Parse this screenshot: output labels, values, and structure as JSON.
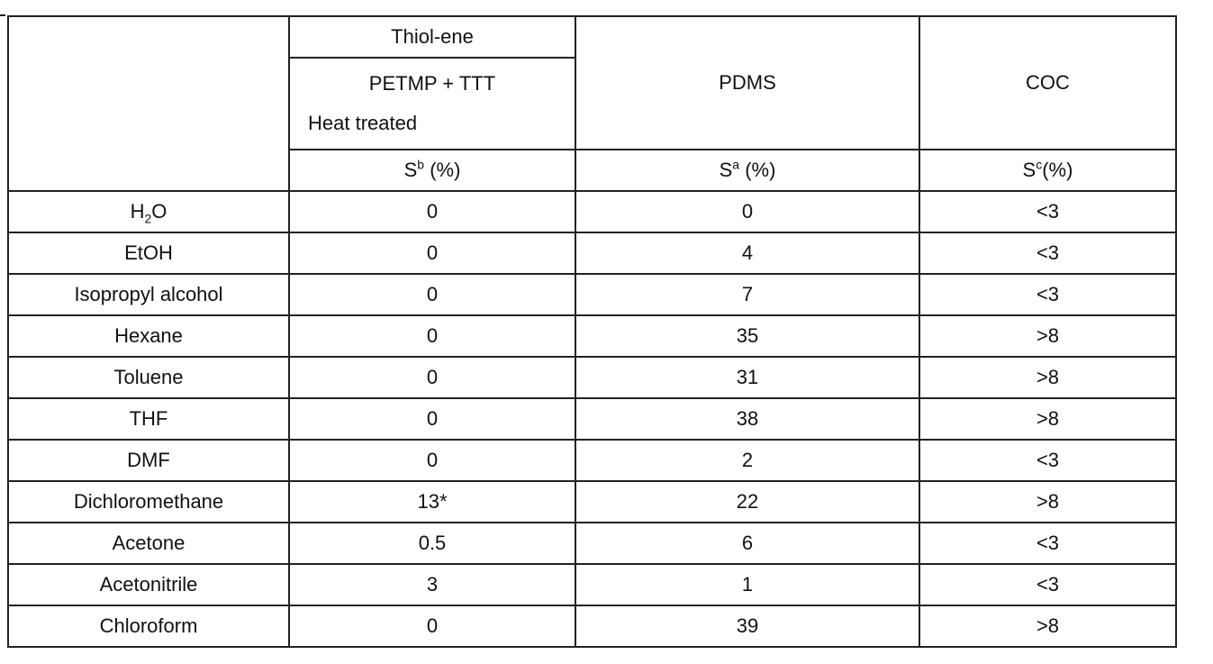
{
  "header": {
    "group_label": "Thiol-ene",
    "thiolene_formulation": "PETMP + TTT",
    "thiolene_treatment": "Heat treated",
    "pdms_label": "PDMS",
    "coc_label": "COC",
    "unit_thiolene": {
      "symbol": "S",
      "sup": "b",
      "unit": "(%)"
    },
    "unit_pdms": {
      "symbol": "S",
      "sup": "a",
      "unit": "(%)"
    },
    "unit_coc": {
      "symbol": "S",
      "sup": "c",
      "unit": "(%)"
    }
  },
  "rows": [
    {
      "solvent_pre": "H",
      "solvent_sub": "2",
      "solvent_post": "O",
      "thiolene": "0",
      "pdms": "0",
      "coc": "<3"
    },
    {
      "solvent": "EtOH",
      "thiolene": "0",
      "pdms": "4",
      "coc": "<3"
    },
    {
      "solvent": "Isopropyl alcohol",
      "thiolene": "0",
      "pdms": "7",
      "coc": "<3"
    },
    {
      "solvent": "Hexane",
      "thiolene": "0",
      "pdms": "35",
      "coc": ">8"
    },
    {
      "solvent": "Toluene",
      "thiolene": "0",
      "pdms": "31",
      "coc": ">8"
    },
    {
      "solvent": "THF",
      "thiolene": "0",
      "pdms": "38",
      "coc": ">8"
    },
    {
      "solvent": "DMF",
      "thiolene": "0",
      "pdms": "2",
      "coc": "<3"
    },
    {
      "solvent": "Dichloromethane",
      "thiolene": "13*",
      "pdms": "22",
      "coc": ">8"
    },
    {
      "solvent": "Acetone",
      "thiolene": "0.5",
      "pdms": "6",
      "coc": "<3"
    },
    {
      "solvent": "Acetonitrile",
      "thiolene": "3",
      "pdms": "1",
      "coc": "<3"
    },
    {
      "solvent": "Chloroform",
      "thiolene": "0",
      "pdms": "39",
      "coc": ">8"
    }
  ]
}
